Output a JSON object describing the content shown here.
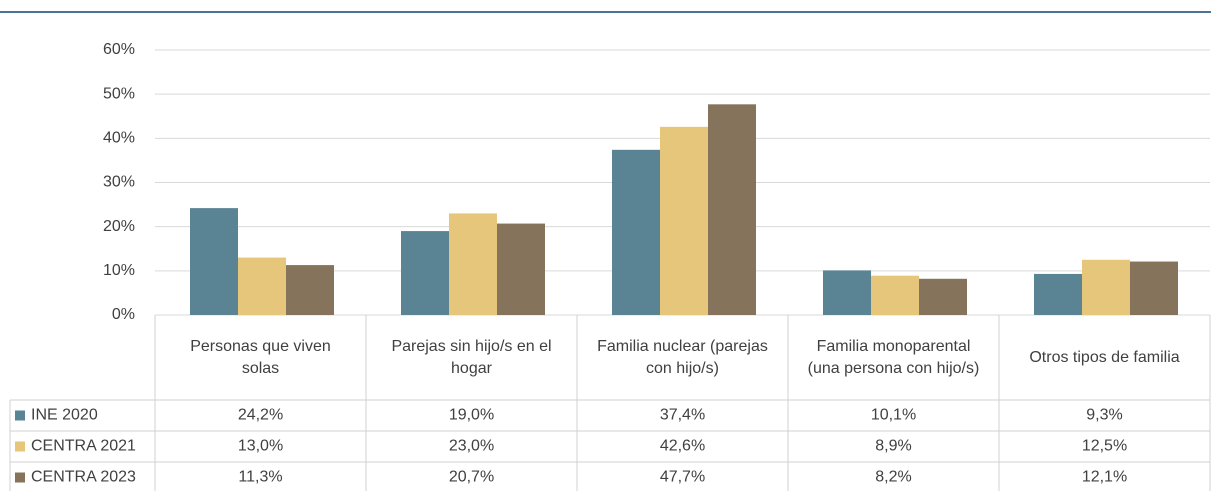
{
  "chart_data": {
    "type": "bar",
    "categories": [
      "Personas que viven solas",
      "Parejas sin hijo/s en el hogar",
      "Familia nuclear (parejas con hijo/s)",
      "Familia monoparental (una persona con hijo/s)",
      "Otros tipos de familia"
    ],
    "series": [
      {
        "name": "INE 2020",
        "color": "#5a8394",
        "values": [
          24.2,
          19.0,
          37.4,
          10.1,
          9.3
        ],
        "value_labels": [
          "24,2%",
          "19,0%",
          "37,4%",
          "10,1%",
          "9,3%"
        ]
      },
      {
        "name": "CENTRA 2021",
        "color": "#e6c67a",
        "values": [
          13.0,
          23.0,
          42.6,
          8.9,
          12.5
        ],
        "value_labels": [
          "13,0%",
          "23,0%",
          "42,6%",
          "8,9%",
          "12,5%"
        ]
      },
      {
        "name": "CENTRA 2023",
        "color": "#85735b",
        "values": [
          11.3,
          20.7,
          47.7,
          8.2,
          12.1
        ],
        "value_labels": [
          "11,3%",
          "20,7%",
          "47,7%",
          "8,2%",
          "12,1%"
        ]
      }
    ],
    "ylim": [
      0,
      60
    ],
    "yticks": [
      {
        "value": 0,
        "label": "0%"
      },
      {
        "value": 10,
        "label": "10%"
      },
      {
        "value": 20,
        "label": "20%"
      },
      {
        "value": 30,
        "label": "30%"
      },
      {
        "value": 40,
        "label": "40%"
      },
      {
        "value": 50,
        "label": "50%"
      },
      {
        "value": 60,
        "label": "60%"
      }
    ],
    "grid": true
  }
}
